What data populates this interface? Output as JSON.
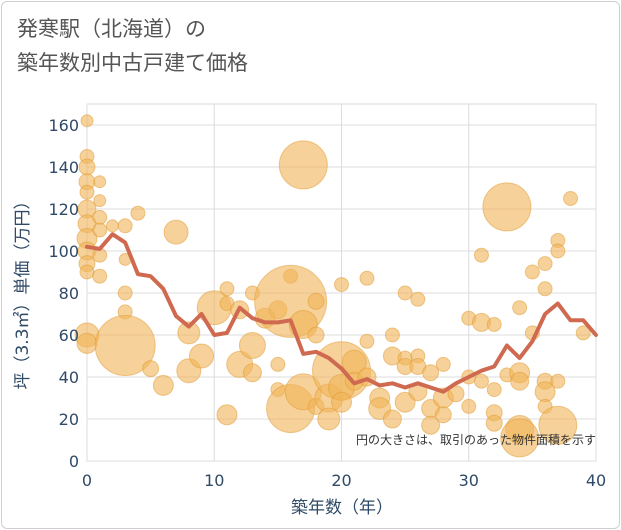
{
  "title_lines": [
    "発寒駅（北海道）の",
    "築年数別中古戸建て価格"
  ],
  "chart_data": {
    "type": "scatter",
    "xlabel": "築年数（年）",
    "ylabel": "坪（3.3㎡）単価（万円）",
    "xlim": [
      0,
      40
    ],
    "ylim": [
      0,
      170
    ],
    "xticks": [
      0,
      10,
      20,
      30,
      40
    ],
    "yticks": [
      0,
      20,
      40,
      60,
      80,
      100,
      120,
      140,
      160
    ],
    "grid": true,
    "annotation": "円の大きさは、取引のあった物件面積を示す",
    "colors": {
      "bubble": "#f0b45a",
      "bubble_edge": "#e09a30",
      "trend": "#cf6a50"
    },
    "trend_line": [
      [
        0,
        102
      ],
      [
        1,
        101
      ],
      [
        2,
        108
      ],
      [
        3,
        104
      ],
      [
        4,
        89
      ],
      [
        5,
        88
      ],
      [
        6,
        82
      ],
      [
        7,
        69
      ],
      [
        8,
        64
      ],
      [
        9,
        70
      ],
      [
        10,
        60
      ],
      [
        11,
        61
      ],
      [
        12,
        73
      ],
      [
        13,
        68
      ],
      [
        14,
        66
      ],
      [
        15,
        66
      ],
      [
        16,
        67
      ],
      [
        17,
        51
      ],
      [
        18,
        52
      ],
      [
        19,
        49
      ],
      [
        20,
        44
      ],
      [
        21,
        37
      ],
      [
        22,
        39
      ],
      [
        23,
        36
      ],
      [
        24,
        37
      ],
      [
        25,
        35
      ],
      [
        26,
        37
      ],
      [
        27,
        35
      ],
      [
        28,
        33
      ],
      [
        29,
        37
      ],
      [
        30,
        40
      ],
      [
        31,
        43
      ],
      [
        32,
        45
      ],
      [
        33,
        55
      ],
      [
        34,
        49
      ],
      [
        35,
        57
      ],
      [
        36,
        70
      ],
      [
        37,
        75
      ],
      [
        38,
        67
      ],
      [
        39,
        67
      ],
      [
        40,
        60
      ]
    ],
    "points": [
      {
        "x": 0,
        "y": 162,
        "r": 6
      },
      {
        "x": 0,
        "y": 145,
        "r": 7
      },
      {
        "x": 0,
        "y": 140,
        "r": 8
      },
      {
        "x": 0,
        "y": 133,
        "r": 8
      },
      {
        "x": 0,
        "y": 128,
        "r": 7
      },
      {
        "x": 0,
        "y": 120,
        "r": 9
      },
      {
        "x": 0,
        "y": 113,
        "r": 9
      },
      {
        "x": 0,
        "y": 106,
        "r": 10
      },
      {
        "x": 0,
        "y": 100,
        "r": 9
      },
      {
        "x": 0,
        "y": 94,
        "r": 8
      },
      {
        "x": 0,
        "y": 90,
        "r": 7
      },
      {
        "x": 0,
        "y": 60,
        "r": 12
      },
      {
        "x": 0,
        "y": 56,
        "r": 10
      },
      {
        "x": 1,
        "y": 133,
        "r": 6
      },
      {
        "x": 1,
        "y": 124,
        "r": 6
      },
      {
        "x": 1,
        "y": 116,
        "r": 7
      },
      {
        "x": 1,
        "y": 110,
        "r": 7
      },
      {
        "x": 1,
        "y": 98,
        "r": 7
      },
      {
        "x": 1,
        "y": 88,
        "r": 7
      },
      {
        "x": 2,
        "y": 112,
        "r": 6
      },
      {
        "x": 3,
        "y": 112,
        "r": 7
      },
      {
        "x": 3,
        "y": 96,
        "r": 6
      },
      {
        "x": 3,
        "y": 80,
        "r": 7
      },
      {
        "x": 3,
        "y": 71,
        "r": 7
      },
      {
        "x": 3,
        "y": 55,
        "r": 30
      },
      {
        "x": 4,
        "y": 118,
        "r": 7
      },
      {
        "x": 5,
        "y": 44,
        "r": 8
      },
      {
        "x": 6,
        "y": 36,
        "r": 10
      },
      {
        "x": 7,
        "y": 109,
        "r": 12
      },
      {
        "x": 8,
        "y": 43,
        "r": 12
      },
      {
        "x": 8,
        "y": 61,
        "r": 11
      },
      {
        "x": 9,
        "y": 50,
        "r": 12
      },
      {
        "x": 10,
        "y": 73,
        "r": 17
      },
      {
        "x": 11,
        "y": 82,
        "r": 7
      },
      {
        "x": 11,
        "y": 75,
        "r": 7
      },
      {
        "x": 11,
        "y": 22,
        "r": 10
      },
      {
        "x": 12,
        "y": 46,
        "r": 13
      },
      {
        "x": 12,
        "y": 72,
        "r": 9
      },
      {
        "x": 13,
        "y": 80,
        "r": 7
      },
      {
        "x": 13,
        "y": 55,
        "r": 13
      },
      {
        "x": 13,
        "y": 42,
        "r": 9
      },
      {
        "x": 14,
        "y": 68,
        "r": 10
      },
      {
        "x": 15,
        "y": 72,
        "r": 9
      },
      {
        "x": 15,
        "y": 34,
        "r": 7
      },
      {
        "x": 15,
        "y": 46,
        "r": 7
      },
      {
        "x": 16,
        "y": 88,
        "r": 7
      },
      {
        "x": 16,
        "y": 76,
        "r": 36
      },
      {
        "x": 16,
        "y": 25,
        "r": 24
      },
      {
        "x": 17,
        "y": 141,
        "r": 24
      },
      {
        "x": 17,
        "y": 65,
        "r": 14
      },
      {
        "x": 17,
        "y": 33,
        "r": 18
      },
      {
        "x": 18,
        "y": 76,
        "r": 8
      },
      {
        "x": 18,
        "y": 60,
        "r": 8
      },
      {
        "x": 18,
        "y": 26,
        "r": 8
      },
      {
        "x": 19,
        "y": 30,
        "r": 14
      },
      {
        "x": 19,
        "y": 20,
        "r": 11
      },
      {
        "x": 20,
        "y": 84,
        "r": 7
      },
      {
        "x": 20,
        "y": 43,
        "r": 29
      },
      {
        "x": 20,
        "y": 35,
        "r": 13
      },
      {
        "x": 20,
        "y": 28,
        "r": 10
      },
      {
        "x": 21,
        "y": 47,
        "r": 12
      },
      {
        "x": 21,
        "y": 38,
        "r": 9
      },
      {
        "x": 22,
        "y": 87,
        "r": 7
      },
      {
        "x": 22,
        "y": 40,
        "r": 9
      },
      {
        "x": 22,
        "y": 57,
        "r": 7
      },
      {
        "x": 23,
        "y": 30,
        "r": 10
      },
      {
        "x": 23,
        "y": 25,
        "r": 11
      },
      {
        "x": 24,
        "y": 60,
        "r": 7
      },
      {
        "x": 24,
        "y": 50,
        "r": 9
      },
      {
        "x": 24,
        "y": 20,
        "r": 9
      },
      {
        "x": 25,
        "y": 80,
        "r": 7
      },
      {
        "x": 25,
        "y": 49,
        "r": 7
      },
      {
        "x": 25,
        "y": 45,
        "r": 8
      },
      {
        "x": 25,
        "y": 28,
        "r": 10
      },
      {
        "x": 26,
        "y": 77,
        "r": 7
      },
      {
        "x": 26,
        "y": 50,
        "r": 7
      },
      {
        "x": 26,
        "y": 45,
        "r": 8
      },
      {
        "x": 26,
        "y": 33,
        "r": 9
      },
      {
        "x": 27,
        "y": 42,
        "r": 8
      },
      {
        "x": 27,
        "y": 25,
        "r": 9
      },
      {
        "x": 27,
        "y": 17,
        "r": 9
      },
      {
        "x": 28,
        "y": 46,
        "r": 7
      },
      {
        "x": 28,
        "y": 30,
        "r": 10
      },
      {
        "x": 28,
        "y": 22,
        "r": 8
      },
      {
        "x": 29,
        "y": 32,
        "r": 8
      },
      {
        "x": 30,
        "y": 68,
        "r": 7
      },
      {
        "x": 30,
        "y": 40,
        "r": 7
      },
      {
        "x": 30,
        "y": 26,
        "r": 7
      },
      {
        "x": 31,
        "y": 98,
        "r": 7
      },
      {
        "x": 31,
        "y": 66,
        "r": 9
      },
      {
        "x": 31,
        "y": 38,
        "r": 7
      },
      {
        "x": 32,
        "y": 65,
        "r": 7
      },
      {
        "x": 32,
        "y": 34,
        "r": 7
      },
      {
        "x": 32,
        "y": 23,
        "r": 8
      },
      {
        "x": 32,
        "y": 18,
        "r": 8
      },
      {
        "x": 33,
        "y": 121,
        "r": 24
      },
      {
        "x": 33,
        "y": 41,
        "r": 7
      },
      {
        "x": 34,
        "y": 73,
        "r": 7
      },
      {
        "x": 34,
        "y": 42,
        "r": 10
      },
      {
        "x": 34,
        "y": 38,
        "r": 9
      },
      {
        "x": 34,
        "y": 15,
        "r": 14
      },
      {
        "x": 34,
        "y": 11,
        "r": 19
      },
      {
        "x": 35,
        "y": 90,
        "r": 7
      },
      {
        "x": 35,
        "y": 61,
        "r": 7
      },
      {
        "x": 36,
        "y": 94,
        "r": 7
      },
      {
        "x": 36,
        "y": 82,
        "r": 7
      },
      {
        "x": 36,
        "y": 38,
        "r": 8
      },
      {
        "x": 36,
        "y": 33,
        "r": 10
      },
      {
        "x": 36,
        "y": 26,
        "r": 7
      },
      {
        "x": 37,
        "y": 105,
        "r": 7
      },
      {
        "x": 37,
        "y": 100,
        "r": 7
      },
      {
        "x": 37,
        "y": 38,
        "r": 7
      },
      {
        "x": 37,
        "y": 17,
        "r": 19
      },
      {
        "x": 38,
        "y": 125,
        "r": 7
      },
      {
        "x": 39,
        "y": 61,
        "r": 7
      }
    ]
  }
}
